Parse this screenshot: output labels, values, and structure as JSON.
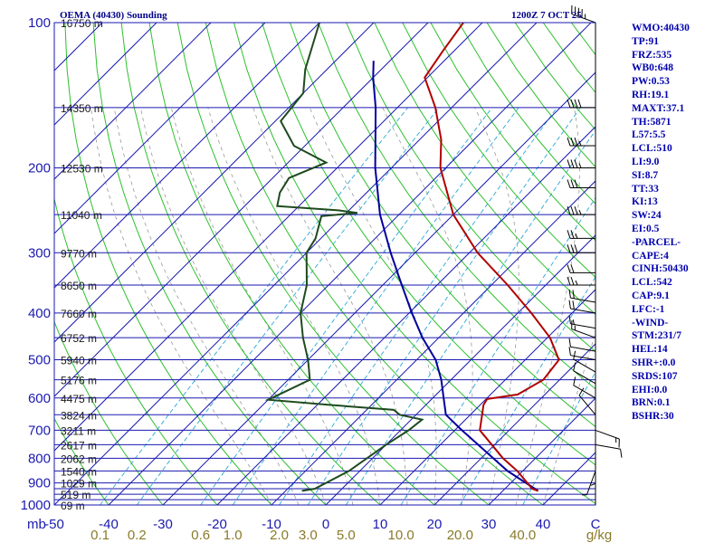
{
  "header": {
    "title": "OEMA (40430) Sounding",
    "time": "1200Z  7 OCT 25"
  },
  "stats": [
    "WMO:40430",
    "TP:91",
    "FRZ:535",
    "WB0:648",
    "PW:0.53",
    "RH:19.1",
    "MAXT:37.1",
    "TH:5871",
    "L57:5.5",
    "LCL:510",
    "LI:9.0",
    "SI:8.7",
    "TT:33",
    "KI:13",
    "SW:24",
    "EI:0.5",
    "-PARCEL-",
    "CAPE:4",
    "CINH:50430",
    "LCL:542",
    "CAP:9.1",
    "LFC:-1",
    "-WIND-",
    "STM:231/7",
    "HEL:14",
    "SHR+:0.0",
    "SRDS:107",
    "EHI:0.0",
    "BRN:0.1",
    "BSHR:30"
  ],
  "colors": {
    "isobar": "#1a1ab0",
    "isotherm": "#1a1ab0",
    "dry_adiabat": "#2ec02e",
    "moist_adiabat": "#999999",
    "mixing_ratio": "#2aa8d8",
    "temperature": "#b00000",
    "dewpoint": "#1e4a1e",
    "parcel": "#00009a"
  },
  "chart_data": {
    "type": "skew-t",
    "pressure_ticks": [
      100,
      200,
      300,
      400,
      500,
      600,
      700,
      800,
      900,
      1000
    ],
    "pressure_unit": "mb",
    "isobar_levels": [
      100,
      150,
      200,
      250,
      300,
      350,
      400,
      450,
      500,
      550,
      600,
      650,
      700,
      750,
      800,
      850,
      900,
      925,
      950,
      975,
      1000
    ],
    "height_labels": [
      {
        "p": 100,
        "text": "16750 m"
      },
      {
        "p": 150,
        "text": "14350 m"
      },
      {
        "p": 200,
        "text": "12530 m"
      },
      {
        "p": 250,
        "text": "11040 m"
      },
      {
        "p": 300,
        "text": "9770 m"
      },
      {
        "p": 350,
        "text": "8650 m"
      },
      {
        "p": 400,
        "text": "7660 m"
      },
      {
        "p": 450,
        "text": "6752 m"
      },
      {
        "p": 500,
        "text": "5940 m"
      },
      {
        "p": 550,
        "text": "5176 m"
      },
      {
        "p": 600,
        "text": "4475 m"
      },
      {
        "p": 650,
        "text": "3824 m"
      },
      {
        "p": 700,
        "text": "3211 m"
      },
      {
        "p": 750,
        "text": "2617 m"
      },
      {
        "p": 800,
        "text": "2062 m"
      },
      {
        "p": 850,
        "text": "1540 m"
      },
      {
        "p": 900,
        "text": "1029 m"
      },
      {
        "p": 950,
        "text": "519 m"
      },
      {
        "p": 1000,
        "text": "69 m"
      }
    ],
    "temperature_ticks": [
      "-50",
      "-40",
      "-30",
      "-20",
      "-10",
      "0",
      "10",
      "20",
      "30",
      "40",
      "C"
    ],
    "mixing_ratio_labels": [
      "0.1",
      "0.2",
      "0.6",
      "1.0",
      "2.0",
      "3.0",
      "5.0",
      "10.0",
      "20.0",
      "40.0",
      "g/kg"
    ],
    "temperature_profile": [
      [
        935,
        36.5
      ],
      [
        925,
        35.0
      ],
      [
        850,
        29.0
      ],
      [
        800,
        24.0
      ],
      [
        700,
        14.6
      ],
      [
        620,
        10.6
      ],
      [
        603,
        10.2
      ],
      [
        590,
        15.0
      ],
      [
        550,
        17.0
      ],
      [
        500,
        16.2
      ],
      [
        450,
        10.5
      ],
      [
        400,
        2.5
      ],
      [
        350,
        -7.0
      ],
      [
        300,
        -18.5
      ],
      [
        250,
        -30.0
      ],
      [
        200,
        -41.0
      ],
      [
        175,
        -46.0
      ],
      [
        150,
        -53.0
      ],
      [
        130,
        -60.5
      ],
      [
        115,
        -62.0
      ],
      [
        100,
        -63.5
      ]
    ],
    "dewpoint_profile": [
      [
        935,
        -7.0
      ],
      [
        925,
        -5.0
      ],
      [
        850,
        -2.0
      ],
      [
        750,
        0.0
      ],
      [
        700,
        1.5
      ],
      [
        665,
        2.0
      ],
      [
        650,
        -3.0
      ],
      [
        635,
        -5.0
      ],
      [
        620,
        -18.0
      ],
      [
        605,
        -30.0
      ],
      [
        550,
        -26.0
      ],
      [
        500,
        -30.0
      ],
      [
        450,
        -35.0
      ],
      [
        400,
        -40.0
      ],
      [
        350,
        -44.0
      ],
      [
        300,
        -50.0
      ],
      [
        280,
        -51.0
      ],
      [
        252,
        -54.0
      ],
      [
        248,
        -48.0
      ],
      [
        245,
        -52.0
      ],
      [
        240,
        -64.0
      ],
      [
        225,
        -66.0
      ],
      [
        210,
        -67.0
      ],
      [
        195,
        -63.0
      ],
      [
        180,
        -72.0
      ],
      [
        160,
        -79.0
      ],
      [
        140,
        -80.0
      ],
      [
        125,
        -84.0
      ],
      [
        100,
        -90.0
      ]
    ],
    "parcel_profile": [
      [
        935,
        36.5
      ],
      [
        850,
        27.2
      ],
      [
        700,
        11.3
      ],
      [
        650,
        5.5
      ],
      [
        600,
        2.0
      ],
      [
        550,
        -1.8
      ],
      [
        500,
        -6.5
      ],
      [
        450,
        -13.0
      ],
      [
        400,
        -19.5
      ],
      [
        350,
        -26.5
      ],
      [
        300,
        -34.5
      ],
      [
        250,
        -43.5
      ],
      [
        200,
        -53.0
      ],
      [
        150,
        -64.0
      ],
      [
        130,
        -70.0
      ],
      [
        120,
        -73.0
      ]
    ],
    "wind_barbs": [
      [
        100,
        290,
        45
      ],
      [
        150,
        270,
        40
      ],
      [
        180,
        270,
        35
      ],
      [
        200,
        270,
        35
      ],
      [
        220,
        270,
        30
      ],
      [
        250,
        270,
        35
      ],
      [
        280,
        270,
        25
      ],
      [
        300,
        270,
        30
      ],
      [
        330,
        270,
        20
      ],
      [
        350,
        270,
        25
      ],
      [
        380,
        280,
        20
      ],
      [
        400,
        280,
        20
      ],
      [
        430,
        280,
        15
      ],
      [
        450,
        290,
        15
      ],
      [
        480,
        280,
        10
      ],
      [
        500,
        280,
        10
      ],
      [
        530,
        300,
        10
      ],
      [
        560,
        300,
        10
      ],
      [
        600,
        300,
        10
      ],
      [
        650,
        320,
        10
      ],
      [
        700,
        110,
        15
      ],
      [
        750,
        100,
        10
      ],
      [
        800,
        180,
        5
      ],
      [
        850,
        200,
        5
      ]
    ]
  }
}
